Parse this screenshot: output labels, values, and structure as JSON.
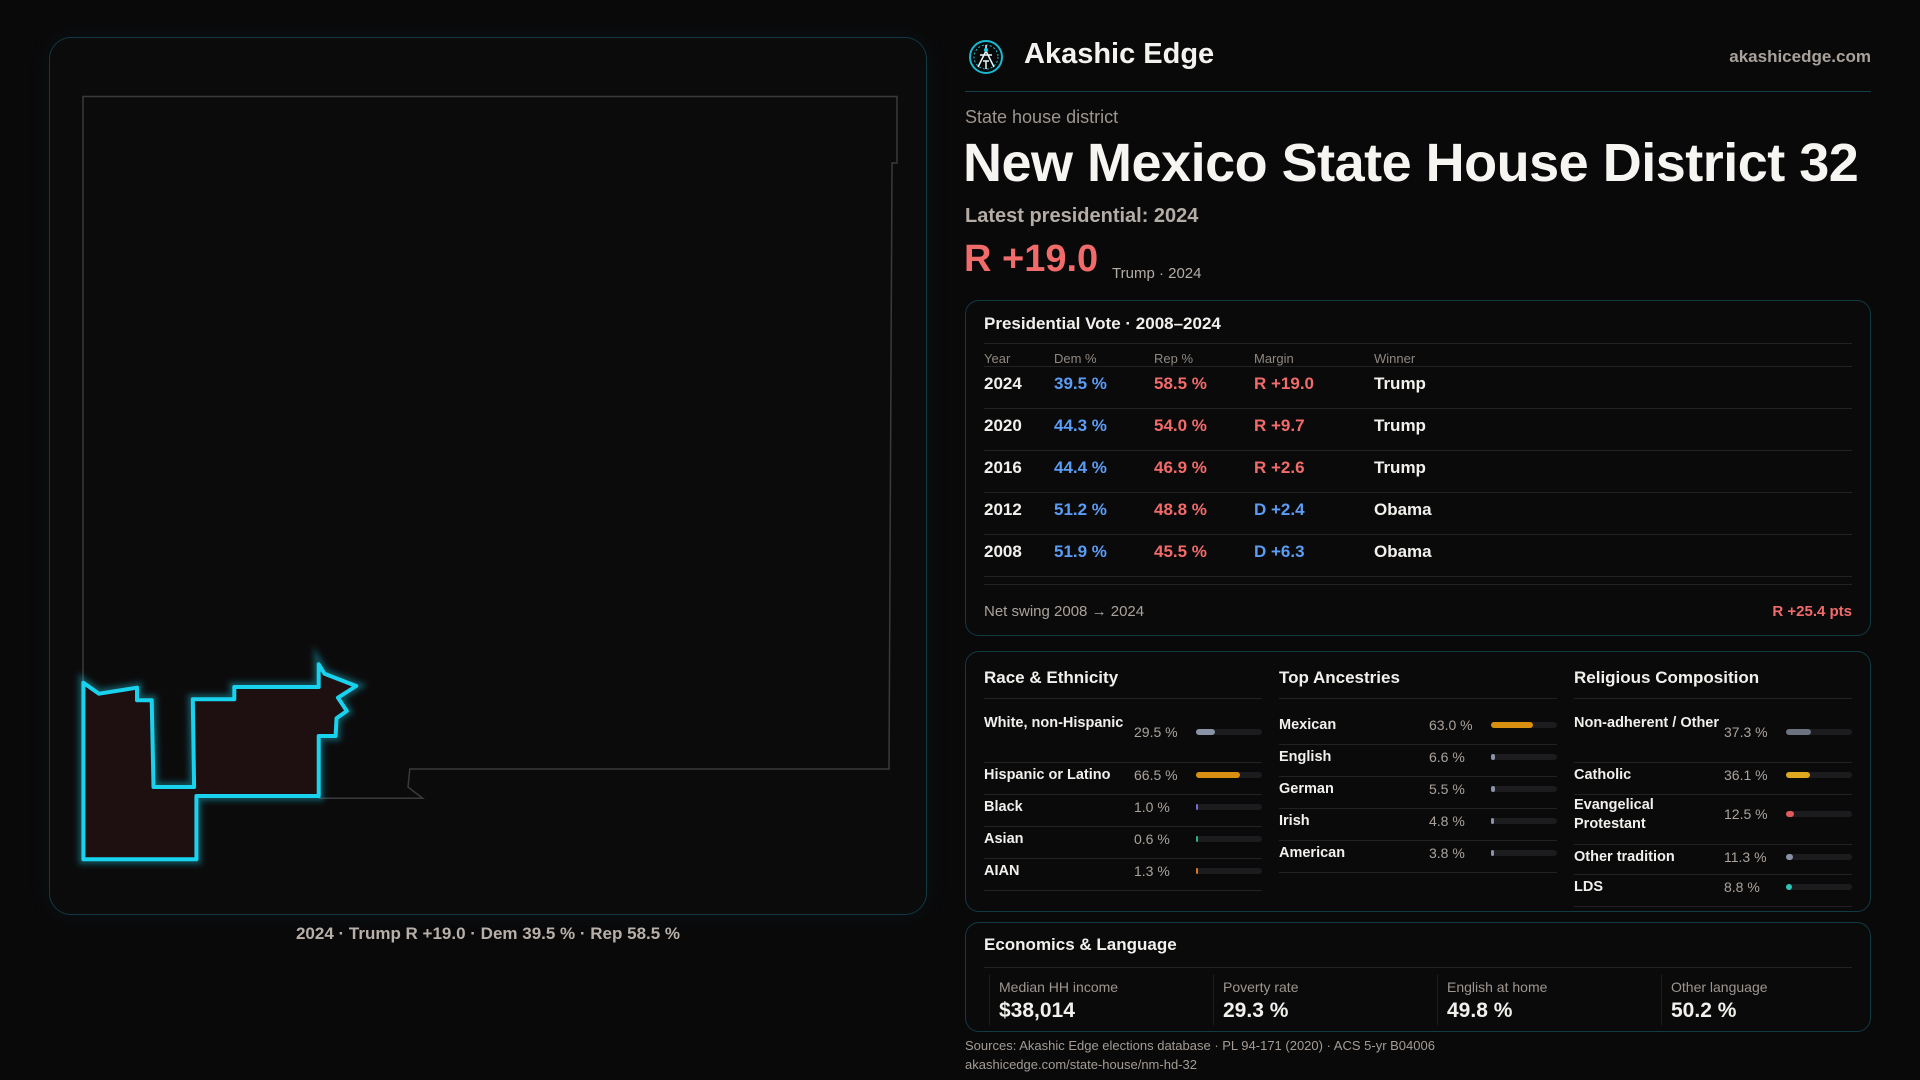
{
  "brand": {
    "name": "Akashic Edge",
    "site": "akashicedge.com",
    "logo_icon": "akashic-edge-logo-icon"
  },
  "header": {
    "kicker": "State house district",
    "title": "New Mexico State House District 32",
    "latest": "Latest presidential: 2024",
    "margin": "R +19.0",
    "margin_sub": "Trump · 2024"
  },
  "map": {
    "caption": "2024 · Trump R +19.0 · Dem 39.5 % · Rep 58.5 %",
    "highlight_color": "#19d3ee",
    "fill_color": "#1e0f10"
  },
  "presidential": {
    "title": "Presidential Vote · 2008–2024",
    "columns": [
      "Year",
      "Dem %",
      "Rep %",
      "Margin",
      "Winner"
    ],
    "rows": [
      {
        "year": "2024",
        "dem": "39.5 %",
        "rep": "58.5 %",
        "margin": "R +19.0",
        "party": "R",
        "winner": "Trump"
      },
      {
        "year": "2020",
        "dem": "44.3 %",
        "rep": "54.0 %",
        "margin": "R +9.7",
        "party": "R",
        "winner": "Trump"
      },
      {
        "year": "2016",
        "dem": "44.4 %",
        "rep": "46.9 %",
        "margin": "R +2.6",
        "party": "R",
        "winner": "Trump"
      },
      {
        "year": "2012",
        "dem": "51.2 %",
        "rep": "48.8 %",
        "margin": "D +2.4",
        "party": "D",
        "winner": "Obama"
      },
      {
        "year": "2008",
        "dem": "51.9 %",
        "rep": "45.5 %",
        "margin": "D +6.3",
        "party": "D",
        "winner": "Obama"
      }
    ],
    "net_swing_label": "Net swing 2008 → 2024",
    "net_swing_value": "R +25.4 pts"
  },
  "colors": {
    "dem": "#5b9cf5",
    "rep": "#f26b6b",
    "accent": "#19d3ee"
  },
  "demographics": [
    {
      "title": "Race & Ethnicity",
      "items": [
        {
          "label": "White, non-Hispanic",
          "value": "29.5 %",
          "pct": 29.5,
          "color": "#8a93a6"
        },
        {
          "label": "Hispanic or Latino",
          "value": "66.5 %",
          "pct": 66.5,
          "color": "#d98f0f"
        },
        {
          "label": "Black",
          "value": "1.0 %",
          "pct": 1.0,
          "color": "#7a6bd0"
        },
        {
          "label": "Asian",
          "value": "0.6 %",
          "pct": 0.6,
          "color": "#2fb37a"
        },
        {
          "label": "AIAN",
          "value": "1.3 %",
          "pct": 1.3,
          "color": "#d9761f"
        }
      ]
    },
    {
      "title": "Top Ancestries",
      "items": [
        {
          "label": "Mexican",
          "value": "63.0 %",
          "pct": 63.0,
          "color": "#d98f0f"
        },
        {
          "label": "English",
          "value": "6.6 %",
          "pct": 6.6,
          "color": "#8a93a6"
        },
        {
          "label": "German",
          "value": "5.5 %",
          "pct": 5.5,
          "color": "#8a93a6"
        },
        {
          "label": "Irish",
          "value": "4.8 %",
          "pct": 4.8,
          "color": "#8a93a6"
        },
        {
          "label": "American",
          "value": "3.8 %",
          "pct": 3.8,
          "color": "#8a93a6"
        }
      ]
    },
    {
      "title": "Religious Composition",
      "items": [
        {
          "label": "Non-adherent / Other",
          "value": "37.3 %",
          "pct": 37.3,
          "color": "#6b7280"
        },
        {
          "label": "Catholic",
          "value": "36.1 %",
          "pct": 36.1,
          "color": "#e0a81f"
        },
        {
          "label": "Evangelical Protestant",
          "value": "12.5 %",
          "pct": 12.5,
          "color": "#e05a5a"
        },
        {
          "label": "Other tradition",
          "value": "11.3 %",
          "pct": 11.3,
          "color": "#8a93a6"
        },
        {
          "label": "LDS",
          "value": "8.8 %",
          "pct": 8.8,
          "color": "#2ec4b6"
        }
      ]
    }
  ],
  "economics": {
    "title": "Economics & Language",
    "stats": [
      {
        "label": "Median HH income",
        "value": "$38,014"
      },
      {
        "label": "Poverty rate",
        "value": "29.3 %"
      },
      {
        "label": "English at home",
        "value": "49.8 %"
      },
      {
        "label": "Other language",
        "value": "50.2 %"
      }
    ]
  },
  "footer": {
    "sources": "Sources: Akashic Edge elections database · PL 94-171 (2020) · ACS 5-yr B04006",
    "permalink": "akashicedge.com/state-house/nm-hd-32"
  }
}
